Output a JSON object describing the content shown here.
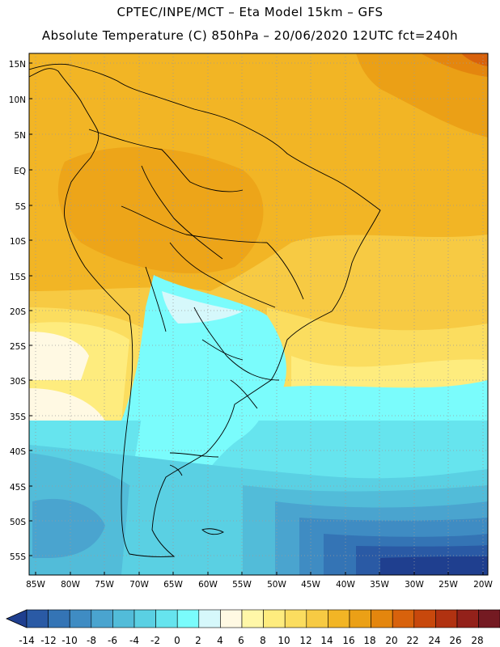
{
  "header": {
    "line1": "CPTEC/INPE/MCT –  Eta Model 15km – GFS",
    "line2": "Absolute Temperature (C) 850hPa – 20/06/2020 12UTC fct=240h"
  },
  "map": {
    "lat_labels": [
      "15N",
      "10N",
      "5N",
      "EQ",
      "5S",
      "10S",
      "15S",
      "20S",
      "25S",
      "30S",
      "35S",
      "40S",
      "45S",
      "50S",
      "55S"
    ],
    "lon_labels": [
      "85W",
      "80W",
      "75W",
      "70W",
      "65W",
      "60W",
      "55W",
      "50W",
      "45W",
      "40W",
      "35W",
      "30W",
      "25W",
      "20W"
    ]
  },
  "colorbar": {
    "ticks": [
      "-14",
      "-12",
      "-10",
      "-8",
      "-6",
      "-4",
      "-2",
      "0",
      "2",
      "4",
      "6",
      "8",
      "10",
      "12",
      "14",
      "16",
      "18",
      "20",
      "22",
      "24",
      "26",
      "28"
    ],
    "colors": [
      "#1f3f8f",
      "#2a5aa5",
      "#3474b5",
      "#3f8cc3",
      "#4aa4cf",
      "#52bcd9",
      "#5ad0e3",
      "#66e4ee",
      "#7afcfc",
      "#d6f8fb",
      "#fff9e3",
      "#fff7a8",
      "#feec7e",
      "#fbdd5f",
      "#f7ca43",
      "#f2b525",
      "#eba016",
      "#e4860e",
      "#d8620c",
      "#c8480c",
      "#b13211",
      "#93211a",
      "#741a22",
      "#6a1121"
    ]
  }
}
